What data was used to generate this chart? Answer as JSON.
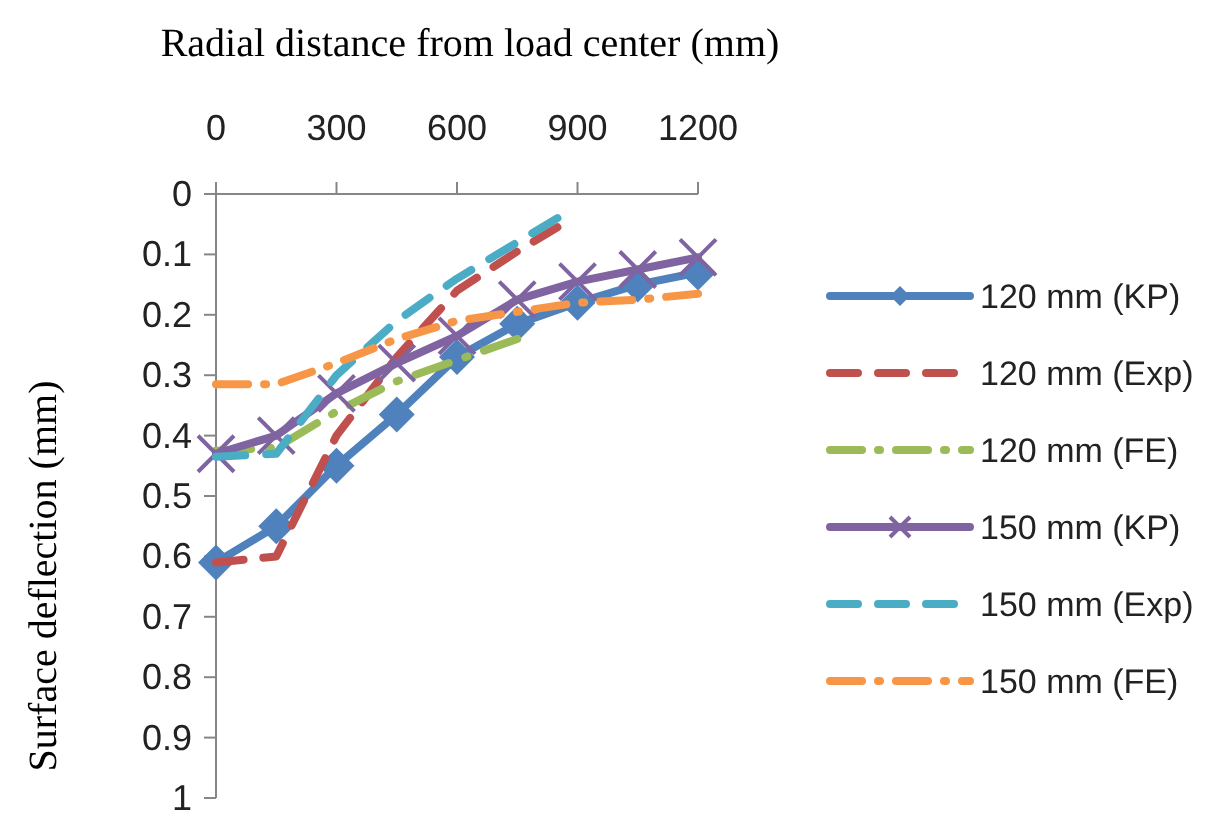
{
  "chart_data": {
    "type": "line",
    "xlabel": "Radial distance from load center (mm)",
    "ylabel": "Surface deflection (mm)",
    "xlim": [
      0,
      1200
    ],
    "xticks": [
      0,
      300,
      600,
      900,
      1200
    ],
    "ylim": [
      1,
      0
    ],
    "yticks": [
      0,
      0.1,
      0.2,
      0.3,
      0.4,
      0.5,
      0.6,
      0.7,
      0.8,
      0.9,
      1
    ],
    "grid": false,
    "legend": "right",
    "series": [
      {
        "name": "120 mm (KP)",
        "color": "#4f81bd",
        "marker": "diamond",
        "line_style": "solid",
        "x": [
          0,
          150,
          300,
          450,
          600,
          750,
          900,
          1050,
          1200
        ],
        "values": [
          0.61,
          0.55,
          0.45,
          0.365,
          0.27,
          0.215,
          0.18,
          0.15,
          0.13
        ]
      },
      {
        "name": "120 mm (Exp)",
        "color": "#c0504d",
        "marker": "none",
        "line_style": "dashed",
        "x": [
          0,
          150,
          300,
          450,
          600,
          750,
          850
        ],
        "values": [
          0.61,
          0.6,
          0.4,
          0.27,
          0.16,
          0.095,
          0.055
        ]
      },
      {
        "name": "120 mm (FE)",
        "color": "#9bbb59",
        "marker": "none",
        "line_style": "dashdot",
        "x": [
          0,
          150,
          300,
          450,
          600,
          750
        ],
        "values": [
          0.425,
          0.42,
          0.36,
          0.31,
          0.275,
          0.24
        ]
      },
      {
        "name": "150 mm (KP)",
        "color": "#8064a2",
        "marker": "cross",
        "line_style": "solid",
        "x": [
          0,
          150,
          300,
          450,
          600,
          750,
          900,
          1050,
          1200
        ],
        "values": [
          0.43,
          0.4,
          0.33,
          0.28,
          0.235,
          0.175,
          0.145,
          0.125,
          0.105
        ]
      },
      {
        "name": "150 mm (Exp)",
        "color": "#4bacc6",
        "marker": "none",
        "line_style": "dashed",
        "x": [
          0,
          150,
          300,
          450,
          600,
          750,
          850
        ],
        "values": [
          0.435,
          0.43,
          0.3,
          0.21,
          0.14,
          0.08,
          0.04
        ]
      },
      {
        "name": "150 mm (FE)",
        "color": "#f79646",
        "marker": "none",
        "line_style": "dashdot",
        "x": [
          0,
          150,
          300,
          450,
          600,
          750,
          900,
          1050,
          1200
        ],
        "values": [
          0.315,
          0.315,
          0.28,
          0.24,
          0.21,
          0.195,
          0.18,
          0.175,
          0.165
        ]
      }
    ]
  }
}
